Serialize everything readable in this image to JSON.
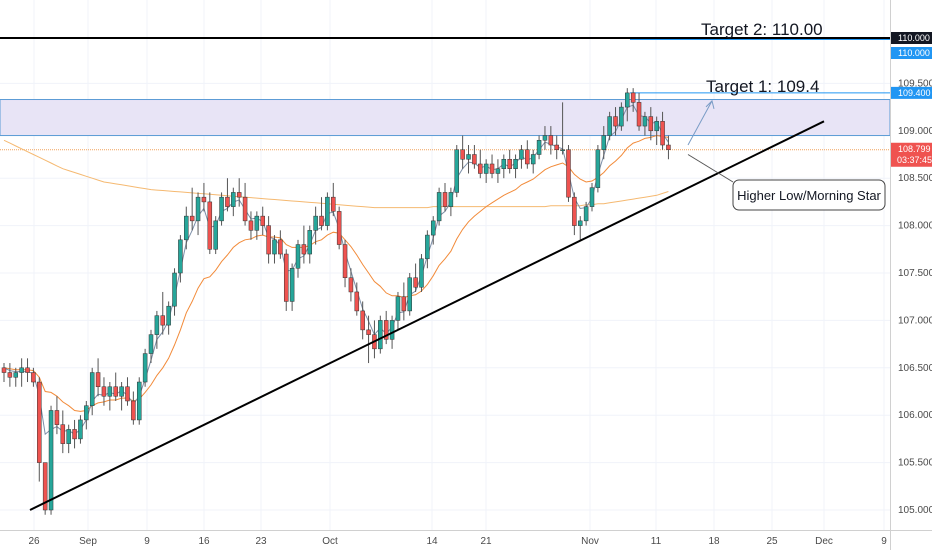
{
  "chart_data": {
    "type": "candlestick",
    "y_ticks": [
      "105.000",
      "105.500",
      "106.000",
      "106.500",
      "107.000",
      "107.500",
      "108.000",
      "108.500",
      "109.000",
      "109.500"
    ],
    "ylim": [
      104.9,
      110.4
    ],
    "x_ticks": [
      "26",
      "Sep",
      "9",
      "16",
      "23",
      "Oct",
      "14",
      "21",
      "Nov",
      "11",
      "18",
      "25",
      "Dec",
      "9"
    ],
    "price_badges": {
      "target2": "110.000",
      "target2_secondary": "110.000",
      "target1": "109.400",
      "last_price": "108.799",
      "countdown": "03:37:45"
    },
    "annotations": {
      "target2": "Target 2: 110.00",
      "target1": "Target 1: 109.4",
      "callout": "Higher Low/Morning Star"
    },
    "levels": {
      "target2": 110.0,
      "target1": 109.4,
      "zone_top": 109.33,
      "zone_bottom": 108.95,
      "last_price": 108.8
    },
    "trendline": {
      "start": {
        "x": "26",
        "y": 105.0
      },
      "end_y": 109.1
    },
    "candles_ohlc": [
      [
        106.5,
        106.55,
        106.35,
        106.45
      ],
      [
        106.45,
        106.55,
        106.3,
        106.4
      ],
      [
        106.4,
        106.5,
        106.3,
        106.45
      ],
      [
        106.45,
        106.6,
        106.3,
        106.5
      ],
      [
        106.5,
        106.6,
        106.35,
        106.45
      ],
      [
        106.45,
        106.5,
        106.3,
        106.35
      ],
      [
        106.35,
        106.4,
        105.3,
        105.5
      ],
      [
        105.5,
        105.5,
        104.95,
        105.0
      ],
      [
        105.0,
        106.1,
        104.95,
        106.05
      ],
      [
        106.05,
        106.2,
        105.8,
        105.9
      ],
      [
        105.9,
        106.05,
        105.6,
        105.7
      ],
      [
        105.7,
        105.9,
        105.6,
        105.85
      ],
      [
        105.85,
        105.95,
        105.65,
        105.75
      ],
      [
        105.75,
        106.0,
        105.7,
        105.95
      ],
      [
        105.95,
        106.15,
        105.85,
        106.1
      ],
      [
        106.1,
        106.5,
        106.0,
        106.45
      ],
      [
        106.45,
        106.6,
        106.2,
        106.3
      ],
      [
        106.3,
        106.4,
        106.1,
        106.2
      ],
      [
        106.2,
        106.35,
        106.05,
        106.3
      ],
      [
        106.3,
        106.45,
        106.15,
        106.2
      ],
      [
        106.2,
        106.35,
        106.05,
        106.3
      ],
      [
        106.3,
        106.4,
        106.1,
        106.15
      ],
      [
        106.15,
        106.25,
        105.9,
        105.95
      ],
      [
        105.95,
        106.4,
        105.9,
        106.35
      ],
      [
        106.35,
        106.7,
        106.3,
        106.65
      ],
      [
        106.65,
        106.9,
        106.55,
        106.85
      ],
      [
        106.85,
        107.1,
        106.7,
        107.05
      ],
      [
        107.05,
        107.3,
        106.85,
        106.95
      ],
      [
        106.95,
        107.2,
        106.85,
        107.15
      ],
      [
        107.15,
        107.55,
        107.05,
        107.5
      ],
      [
        107.5,
        107.9,
        107.4,
        107.85
      ],
      [
        107.85,
        108.2,
        107.75,
        108.1
      ],
      [
        108.1,
        108.4,
        107.95,
        108.05
      ],
      [
        108.05,
        108.35,
        107.9,
        108.3
      ],
      [
        108.3,
        108.45,
        108.15,
        108.25
      ],
      [
        108.25,
        108.35,
        107.7,
        107.75
      ],
      [
        107.75,
        108.1,
        107.7,
        108.05
      ],
      [
        108.05,
        108.35,
        108.0,
        108.3
      ],
      [
        108.3,
        108.5,
        108.15,
        108.2
      ],
      [
        108.2,
        108.4,
        108.1,
        108.35
      ],
      [
        108.35,
        108.5,
        108.2,
        108.3
      ],
      [
        108.3,
        108.45,
        108.0,
        108.05
      ],
      [
        108.05,
        108.15,
        107.85,
        107.95
      ],
      [
        107.95,
        108.15,
        107.85,
        108.1
      ],
      [
        108.1,
        108.2,
        107.9,
        108.0
      ],
      [
        108.0,
        108.1,
        107.6,
        107.7
      ],
      [
        107.7,
        107.9,
        107.6,
        107.85
      ],
      [
        107.85,
        107.95,
        107.65,
        107.7
      ],
      [
        107.7,
        107.75,
        107.1,
        107.2
      ],
      [
        107.2,
        107.6,
        107.1,
        107.55
      ],
      [
        107.55,
        107.85,
        107.45,
        107.8
      ],
      [
        107.8,
        108.0,
        107.6,
        107.7
      ],
      [
        107.7,
        108.0,
        107.6,
        107.95
      ],
      [
        107.95,
        108.2,
        107.8,
        108.1
      ],
      [
        108.1,
        108.3,
        107.95,
        108.0
      ],
      [
        108.0,
        108.35,
        107.95,
        108.3
      ],
      [
        108.3,
        108.45,
        108.1,
        108.15
      ],
      [
        108.15,
        108.2,
        107.75,
        107.8
      ],
      [
        107.8,
        107.85,
        107.35,
        107.45
      ],
      [
        107.45,
        107.55,
        107.2,
        107.3
      ],
      [
        107.3,
        107.4,
        107.05,
        107.1
      ],
      [
        107.1,
        107.2,
        106.8,
        106.9
      ],
      [
        106.9,
        107.05,
        106.55,
        106.85
      ],
      [
        106.85,
        107.0,
        106.6,
        106.7
      ],
      [
        106.7,
        107.05,
        106.65,
        107.0
      ],
      [
        107.0,
        107.1,
        106.75,
        106.8
      ],
      [
        106.8,
        107.05,
        106.7,
        107.0
      ],
      [
        107.0,
        107.3,
        106.9,
        107.25
      ],
      [
        107.25,
        107.4,
        107.0,
        107.1
      ],
      [
        107.1,
        107.5,
        107.05,
        107.45
      ],
      [
        107.45,
        107.6,
        107.3,
        107.35
      ],
      [
        107.35,
        107.7,
        107.3,
        107.65
      ],
      [
        107.65,
        107.95,
        107.55,
        107.9
      ],
      [
        107.9,
        108.1,
        107.8,
        108.05
      ],
      [
        108.05,
        108.4,
        108.0,
        108.35
      ],
      [
        108.35,
        108.45,
        108.15,
        108.2
      ],
      [
        108.2,
        108.4,
        108.1,
        108.35
      ],
      [
        108.35,
        108.85,
        108.3,
        108.8
      ],
      [
        108.8,
        108.95,
        108.6,
        108.7
      ],
      [
        108.7,
        108.85,
        108.55,
        108.75
      ],
      [
        108.75,
        108.85,
        108.6,
        108.65
      ],
      [
        108.65,
        108.8,
        108.5,
        108.55
      ],
      [
        108.55,
        108.7,
        108.45,
        108.65
      ],
      [
        108.65,
        108.75,
        108.5,
        108.55
      ],
      [
        108.55,
        108.7,
        108.45,
        108.6
      ],
      [
        108.6,
        108.75,
        108.5,
        108.7
      ],
      [
        108.7,
        108.8,
        108.55,
        108.6
      ],
      [
        108.6,
        108.75,
        108.5,
        108.7
      ],
      [
        108.7,
        108.85,
        108.6,
        108.8
      ],
      [
        108.8,
        108.9,
        108.6,
        108.65
      ],
      [
        108.65,
        108.8,
        108.55,
        108.75
      ],
      [
        108.75,
        108.95,
        108.7,
        108.9
      ],
      [
        108.9,
        109.05,
        108.8,
        108.95
      ],
      [
        108.95,
        109.05,
        108.75,
        108.85
      ],
      [
        108.85,
        108.95,
        108.7,
        108.8
      ],
      [
        108.8,
        109.3,
        108.75,
        108.8
      ],
      [
        108.8,
        108.85,
        108.25,
        108.3
      ],
      [
        108.3,
        108.35,
        107.9,
        108.0
      ],
      [
        108.0,
        108.1,
        107.85,
        108.05
      ],
      [
        108.05,
        108.25,
        108.0,
        108.2
      ],
      [
        108.2,
        108.45,
        108.15,
        108.4
      ],
      [
        108.4,
        108.85,
        108.35,
        108.8
      ],
      [
        108.8,
        109.05,
        108.7,
        108.95
      ],
      [
        108.95,
        109.2,
        108.9,
        109.15
      ],
      [
        109.15,
        109.25,
        108.95,
        109.05
      ],
      [
        109.05,
        109.3,
        109.0,
        109.25
      ],
      [
        109.25,
        109.45,
        109.1,
        109.4
      ],
      [
        109.4,
        109.45,
        109.2,
        109.3
      ],
      [
        109.3,
        109.4,
        109.0,
        109.05
      ],
      [
        109.05,
        109.2,
        108.95,
        109.15
      ],
      [
        109.15,
        109.25,
        108.9,
        109.0
      ],
      [
        109.0,
        109.15,
        108.85,
        109.1
      ],
      [
        109.1,
        109.2,
        108.8,
        108.85
      ],
      [
        108.85,
        108.95,
        108.7,
        108.8
      ]
    ],
    "ema_fast": [
      106.5,
      106.47,
      106.46,
      106.46,
      106.46,
      106.44,
      106.2,
      105.8,
      105.85,
      105.88,
      105.83,
      105.84,
      105.8,
      105.85,
      105.95,
      106.15,
      106.22,
      106.21,
      106.24,
      106.22,
      106.26,
      106.21,
      106.12,
      106.2,
      106.38,
      106.58,
      106.8,
      106.88,
      107.0,
      107.25,
      107.53,
      107.82,
      107.95,
      108.1,
      108.18,
      107.98,
      108.0,
      108.15,
      108.18,
      108.25,
      108.27,
      108.17,
      108.07,
      108.08,
      108.04,
      107.88,
      107.86,
      107.79,
      107.52,
      107.53,
      107.65,
      107.68,
      107.8,
      107.95,
      107.98,
      108.13,
      108.14,
      107.97,
      107.72,
      107.52,
      107.32,
      107.12,
      106.99,
      106.85,
      106.92,
      106.86,
      106.93,
      107.08,
      107.09,
      107.27,
      107.31,
      107.47,
      107.68,
      107.87,
      108.1,
      108.15,
      108.25,
      108.5,
      108.6,
      108.67,
      108.66,
      108.61,
      108.63,
      108.59,
      108.6,
      108.65,
      108.62,
      108.66,
      108.73,
      108.69,
      108.72,
      108.8,
      108.88,
      108.86,
      108.83,
      108.81,
      108.56,
      108.29,
      108.18,
      108.19,
      108.29,
      108.54,
      108.74,
      108.94,
      108.99,
      109.12,
      109.25,
      109.27,
      109.16,
      109.15,
      109.08,
      109.09,
      108.97,
      108.88
    ],
    "ema_slow": [
      106.5,
      106.49,
      106.48,
      106.48,
      106.48,
      106.47,
      106.4,
      106.25,
      106.24,
      106.2,
      106.14,
      106.1,
      106.05,
      106.04,
      106.05,
      106.1,
      106.13,
      106.14,
      106.16,
      106.16,
      106.18,
      106.18,
      106.15,
      106.17,
      106.24,
      106.32,
      106.42,
      106.5,
      106.6,
      106.74,
      106.9,
      107.08,
      107.2,
      107.34,
      107.44,
      107.46,
      107.53,
      107.62,
      107.69,
      107.77,
      107.82,
      107.85,
      107.86,
      107.89,
      107.9,
      107.88,
      107.88,
      107.87,
      107.8,
      107.77,
      107.77,
      107.77,
      107.79,
      107.83,
      107.85,
      107.9,
      107.93,
      107.92,
      107.85,
      107.78,
      107.69,
      107.59,
      107.5,
      107.41,
      107.36,
      107.29,
      107.26,
      107.26,
      107.24,
      107.26,
      107.27,
      107.31,
      107.38,
      107.47,
      107.58,
      107.65,
      107.73,
      107.86,
      107.96,
      108.04,
      108.1,
      108.15,
      108.2,
      108.24,
      108.28,
      108.32,
      108.35,
      108.38,
      108.43,
      108.46,
      108.49,
      108.54,
      108.59,
      108.62,
      108.64,
      108.66,
      108.62,
      108.54,
      108.49,
      108.46,
      108.47,
      108.51,
      108.56,
      108.63,
      108.68,
      108.74,
      108.82,
      108.87,
      108.89,
      108.92,
      108.93,
      108.95,
      108.94,
      108.93
    ],
    "ma_long": [
      108.9,
      108.87,
      108.84,
      108.81,
      108.78,
      108.75,
      108.72,
      108.69,
      108.66,
      108.63,
      108.6,
      108.58,
      108.56,
      108.54,
      108.52,
      108.5,
      108.48,
      108.46,
      108.45,
      108.44,
      108.43,
      108.42,
      108.41,
      108.4,
      108.39,
      108.38,
      108.375,
      108.37,
      108.365,
      108.36,
      108.355,
      108.35,
      108.345,
      108.34,
      108.335,
      108.33,
      108.325,
      108.32,
      108.315,
      108.31,
      108.305,
      108.3,
      108.295,
      108.29,
      108.285,
      108.28,
      108.275,
      108.27,
      108.265,
      108.26,
      108.255,
      108.25,
      108.245,
      108.24,
      108.235,
      108.23,
      108.225,
      108.22,
      108.215,
      108.21,
      108.205,
      108.2,
      108.195,
      108.19,
      108.19,
      108.19,
      108.19,
      108.19,
      108.19,
      108.19,
      108.19,
      108.19,
      108.19,
      108.2,
      108.2,
      108.2,
      108.2,
      108.2,
      108.2,
      108.2,
      108.2,
      108.2,
      108.2,
      108.2,
      108.2,
      108.2,
      108.2,
      108.2,
      108.2,
      108.2,
      108.2,
      108.2,
      108.2,
      108.21,
      108.21,
      108.21,
      108.21,
      108.21,
      108.21,
      108.22,
      108.22,
      108.23,
      108.23,
      108.24,
      108.25,
      108.26,
      108.27,
      108.28,
      108.29,
      108.3,
      108.31,
      108.32,
      108.34,
      108.36
    ]
  }
}
